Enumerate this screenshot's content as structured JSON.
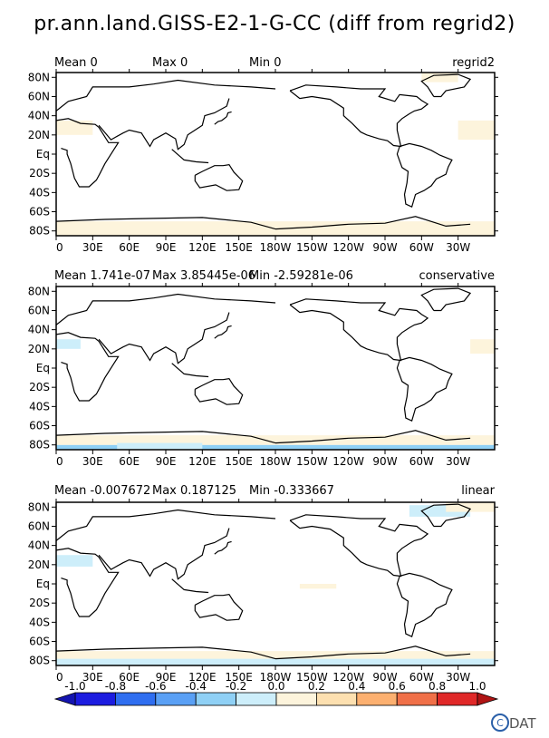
{
  "title": "pr.ann.land.GISS-E2-1-G-CC (diff from regrid2)",
  "panels": [
    {
      "mean": "Mean 0",
      "max": "Max 0",
      "min": "Min 0",
      "method": "regrid2"
    },
    {
      "mean": "Mean 1.741e-07",
      "max": "Max 3.85445e-06",
      "min": "Min -2.59281e-06",
      "method": "conservative"
    },
    {
      "mean": "Mean -0.007672",
      "max": "Max 0.187125",
      "min": "Min -0.333667",
      "method": "linear"
    }
  ],
  "chart_data": {
    "type": "heatmap",
    "title": "pr.ann.land.GISS-E2-1-G-CC (diff from regrid2)",
    "x_ticks": [
      "0",
      "30E",
      "60E",
      "90E",
      "120E",
      "150E",
      "180W",
      "150W",
      "120W",
      "90W",
      "60W",
      "30W"
    ],
    "y_ticks": [
      "80N",
      "60N",
      "40N",
      "20N",
      "Eq",
      "20S",
      "40S",
      "60S",
      "80S"
    ],
    "xlim": [
      0,
      360
    ],
    "ylim": [
      -90,
      90
    ],
    "colorbar": {
      "ticks": [
        "-1.0",
        "-0.8",
        "-0.6",
        "-0.4",
        "-0.2",
        "0.0",
        "0.2",
        "0.4",
        "0.6",
        "0.8",
        "1.0"
      ],
      "colors": [
        "#1c1ce0",
        "#2f6ef0",
        "#5aa0f5",
        "#8fd0f5",
        "#cdeefa",
        "#fdf4dc",
        "#fde0b0",
        "#fcb070",
        "#f07048",
        "#e02828"
      ],
      "extend_low_color": "#1414b0",
      "extend_high_color": "#b01414"
    },
    "series": [
      {
        "name": "regrid2",
        "mean": 0,
        "max": 0,
        "min": 0
      },
      {
        "name": "conservative",
        "mean": 1.741e-07,
        "max": 3.85445e-06,
        "min": -2.59281e-06
      },
      {
        "name": "linear",
        "mean": -0.007672,
        "max": 0.187125,
        "min": -0.333667
      }
    ]
  },
  "logo_text": "CDAT"
}
